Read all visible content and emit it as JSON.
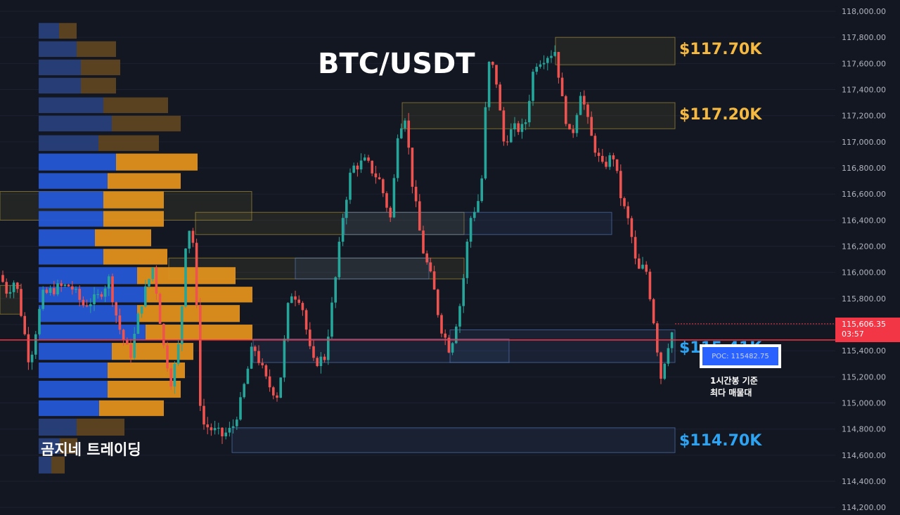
{
  "chart_data": {
    "type": "candlestick",
    "title": "BTC/USDT",
    "brand": "곰지네 트레이딩",
    "y_axis": {
      "ticks": [
        "118,000.00",
        "117,800.00",
        "117,600.00",
        "117,400.00",
        "117,200.00",
        "117,000.00",
        "116,800.00",
        "116,600.00",
        "116,400.00",
        "116,200.00",
        "116,000.00",
        "115,800.00",
        "115,600.00",
        "115,400.00",
        "115,200.00",
        "115,000.00",
        "114,800.00",
        "114,600.00",
        "114,400.00",
        "114,200.00"
      ],
      "range": [
        114150,
        118050
      ]
    },
    "current_price": {
      "value": "115,606.35",
      "countdown": "03:57",
      "price": 115606.35
    },
    "poc": {
      "label": "POC: 115482.75",
      "price": 115482.75,
      "note_line1": "1시간봉 기준",
      "note_line2": "최다 매물대"
    },
    "levels": [
      {
        "label": "$117.70K",
        "price": 117700,
        "color": "#f5b942"
      },
      {
        "label": "$117.20K",
        "price": 117200,
        "color": "#f5b942"
      },
      {
        "label": "$115.41K",
        "price": 115410,
        "color": "#2ea3f2"
      },
      {
        "label": "$114.70K",
        "price": 114700,
        "color": "#2ea3f2"
      }
    ],
    "zones": [
      {
        "start": 790,
        "end": 960,
        "top": 117800,
        "bottom": 117590,
        "kind": "supply"
      },
      {
        "start": 572,
        "end": 960,
        "top": 117300,
        "bottom": 117100,
        "kind": "supply"
      },
      {
        "start": 0,
        "end": 358,
        "top": 116620,
        "bottom": 116400,
        "kind": "supply"
      },
      {
        "start": 278,
        "end": 660,
        "top": 116460,
        "bottom": 116290,
        "kind": "supply"
      },
      {
        "start": 490,
        "end": 870,
        "top": 116460,
        "bottom": 116290,
        "kind": "demand"
      },
      {
        "start": 240,
        "end": 660,
        "top": 116110,
        "bottom": 115950,
        "kind": "supply"
      },
      {
        "start": 420,
        "end": 610,
        "top": 116110,
        "bottom": 115950,
        "kind": "demand"
      },
      {
        "start": 0,
        "end": 30,
        "top": 115900,
        "bottom": 115680,
        "kind": "supply"
      },
      {
        "start": 360,
        "end": 724,
        "top": 115490,
        "bottom": 115310,
        "kind": "demand"
      },
      {
        "start": 640,
        "end": 960,
        "top": 115560,
        "bottom": 115310,
        "kind": "demand"
      },
      {
        "start": 330,
        "end": 960,
        "top": 114810,
        "bottom": 114620,
        "kind": "demand"
      }
    ],
    "volume_profile": [
      {
        "top": 117910,
        "bottom": 117790,
        "buy": 29,
        "sell": 25,
        "dim": true
      },
      {
        "top": 117770,
        "bottom": 117650,
        "buy": 54,
        "sell": 56,
        "dim": true
      },
      {
        "top": 117630,
        "bottom": 117510,
        "buy": 60,
        "sell": 56,
        "dim": true
      },
      {
        "top": 117490,
        "bottom": 117370,
        "buy": 60,
        "sell": 50,
        "dim": true
      },
      {
        "top": 117340,
        "bottom": 117220,
        "buy": 92,
        "sell": 92,
        "dim": true
      },
      {
        "top": 117200,
        "bottom": 117080,
        "buy": 104,
        "sell": 98,
        "dim": true
      },
      {
        "top": 117050,
        "bottom": 116930,
        "buy": 85,
        "sell": 86,
        "dim": true
      },
      {
        "top": 116910,
        "bottom": 116780,
        "buy": 110,
        "sell": 116,
        "dim": false
      },
      {
        "top": 116760,
        "bottom": 116640,
        "buy": 98,
        "sell": 104,
        "dim": false
      },
      {
        "top": 116620,
        "bottom": 116490,
        "buy": 92,
        "sell": 86,
        "dim": false
      },
      {
        "top": 116470,
        "bottom": 116350,
        "buy": 92,
        "sell": 86,
        "dim": false
      },
      {
        "top": 116330,
        "bottom": 116200,
        "buy": 80,
        "sell": 80,
        "dim": false
      },
      {
        "top": 116180,
        "bottom": 116060,
        "buy": 92,
        "sell": 91,
        "dim": false
      },
      {
        "top": 116040,
        "bottom": 115910,
        "buy": 140,
        "sell": 140,
        "dim": false
      },
      {
        "top": 115890,
        "bottom": 115770,
        "buy": 152,
        "sell": 152,
        "dim": false
      },
      {
        "top": 115750,
        "bottom": 115620,
        "buy": 140,
        "sell": 146,
        "dim": false
      },
      {
        "top": 115600,
        "bottom": 115480,
        "buy": 152,
        "sell": 152,
        "dim": false
      },
      {
        "top": 115460,
        "bottom": 115330,
        "buy": 104,
        "sell": 116,
        "dim": false
      },
      {
        "top": 115310,
        "bottom": 115190,
        "buy": 98,
        "sell": 110,
        "dim": false
      },
      {
        "top": 115170,
        "bottom": 115040,
        "buy": 98,
        "sell": 104,
        "dim": false
      },
      {
        "top": 115020,
        "bottom": 114900,
        "buy": 86,
        "sell": 92,
        "dim": false
      },
      {
        "top": 114880,
        "bottom": 114750,
        "buy": 54,
        "sell": 68,
        "dim": true
      },
      {
        "top": 114730,
        "bottom": 114610,
        "buy": 30,
        "sell": 25,
        "dim": true
      },
      {
        "top": 114590,
        "bottom": 114460,
        "buy": 18,
        "sell": 19,
        "dim": true
      }
    ],
    "candle_anchors": [
      [
        0,
        115980
      ],
      [
        10,
        115850
      ],
      [
        22,
        115950
      ],
      [
        42,
        115300
      ],
      [
        60,
        115820
      ],
      [
        80,
        115880
      ],
      [
        100,
        115900
      ],
      [
        118,
        115750
      ],
      [
        138,
        115800
      ],
      [
        155,
        115950
      ],
      [
        168,
        115600
      ],
      [
        185,
        115350
      ],
      [
        200,
        115750
      ],
      [
        218,
        116050
      ],
      [
        232,
        115450
      ],
      [
        244,
        115150
      ],
      [
        256,
        115500
      ],
      [
        266,
        116400
      ],
      [
        276,
        116200
      ],
      [
        286,
        114850
      ],
      [
        300,
        114800
      ],
      [
        316,
        114750
      ],
      [
        330,
        114800
      ],
      [
        342,
        115000
      ],
      [
        360,
        115450
      ],
      [
        380,
        115150
      ],
      [
        396,
        115050
      ],
      [
        412,
        115850
      ],
      [
        428,
        115800
      ],
      [
        444,
        115300
      ],
      [
        462,
        115350
      ],
      [
        476,
        115900
      ],
      [
        488,
        116450
      ],
      [
        500,
        116800
      ],
      [
        520,
        116850
      ],
      [
        540,
        116700
      ],
      [
        556,
        116400
      ],
      [
        566,
        117100
      ],
      [
        576,
        117200
      ],
      [
        586,
        116700
      ],
      [
        600,
        116200
      ],
      [
        616,
        115900
      ],
      [
        626,
        115600
      ],
      [
        640,
        115400
      ],
      [
        656,
        115800
      ],
      [
        668,
        116400
      ],
      [
        684,
        116600
      ],
      [
        694,
        117600
      ],
      [
        704,
        117550
      ],
      [
        716,
        117000
      ],
      [
        730,
        117100
      ],
      [
        746,
        117100
      ],
      [
        760,
        117600
      ],
      [
        774,
        117650
      ],
      [
        790,
        117700
      ],
      [
        800,
        117300
      ],
      [
        812,
        117000
      ],
      [
        826,
        117400
      ],
      [
        840,
        117050
      ],
      [
        856,
        116800
      ],
      [
        872,
        116900
      ],
      [
        884,
        116550
      ],
      [
        896,
        116350
      ],
      [
        906,
        116000
      ],
      [
        918,
        116050
      ],
      [
        928,
        115700
      ],
      [
        940,
        115200
      ],
      [
        950,
        115450
      ],
      [
        960,
        115610
      ]
    ]
  }
}
